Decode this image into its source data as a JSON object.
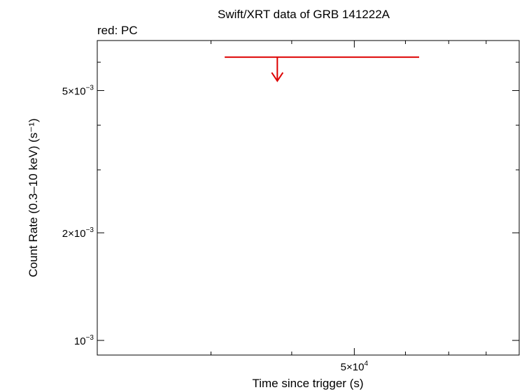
{
  "chart_data": {
    "type": "scatter",
    "title": "Swift/XRT data of GRB 141222A",
    "subtitle": "red: PC",
    "xlabel": "Time since trigger (s)",
    "ylabel": "Count Rate (0.3–10 keV) (s⁻¹)",
    "x_scale": "log",
    "y_scale": "log",
    "xlim": [
      20000,
      90000
    ],
    "ylim": [
      0.00091,
      0.0069
    ],
    "x_tick_labels": [
      {
        "value": 50000,
        "mantissa": "5×10",
        "exp": "4"
      }
    ],
    "y_tick_labels": [
      {
        "value": 0.005,
        "mantissa": "5×10",
        "exp": "−3"
      },
      {
        "value": 0.002,
        "mantissa": "2×10",
        "exp": "−3"
      },
      {
        "value": 0.001,
        "mantissa": "10",
        "exp": "−3"
      }
    ],
    "x_minor_ticks": [
      20000,
      30000,
      40000,
      50000,
      60000,
      70000,
      80000,
      90000
    ],
    "y_minor_ticks": [
      0.001,
      0.002,
      0.003,
      0.004,
      0.005,
      0.006
    ],
    "series": [
      {
        "color": "#dd0000",
        "upper_limits": [
          {
            "x": 38000,
            "x_low": 31500,
            "x_high": 63000,
            "y": 0.0062
          }
        ]
      }
    ],
    "grid": false
  }
}
